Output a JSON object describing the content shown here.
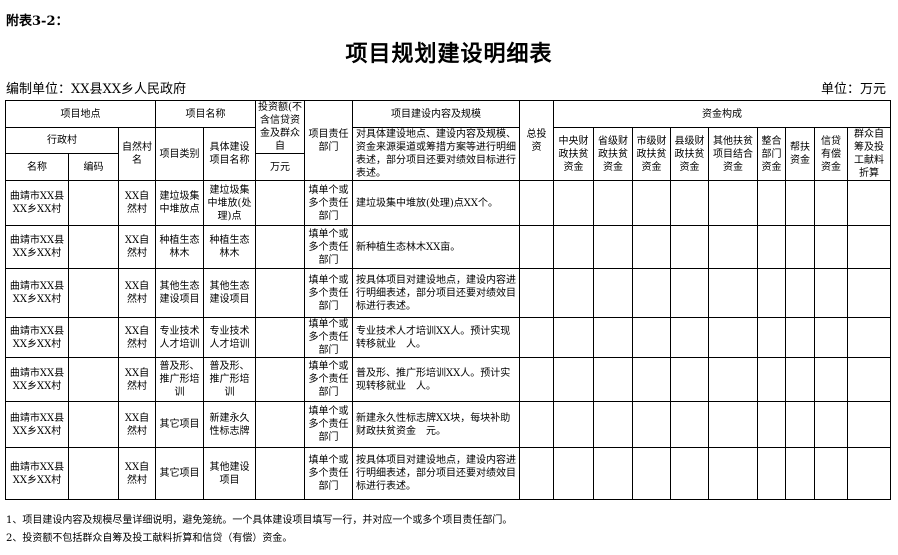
{
  "appendix_label": "附表3-2：",
  "title": "项目规划建设明细表",
  "org": "编制单位：XX县XX乡人民政府",
  "unit": "单位：万元",
  "header": {
    "location": "项目地点",
    "project_name": "项目名称",
    "investment": "投资额(不含信贷资金及群众自",
    "investment_unit": "万元",
    "dept": "项目责任部门",
    "content": "项目建设内容及规模",
    "content_desc": "对具体建设地点、建设内容及规模、资金来源渠道或筹措方案等进行明细表述，部分项目还要对绩效目标进行表述。",
    "total": "总投资",
    "funding": "资金构成",
    "admin_village": "行政村",
    "natural_village": "自然村名",
    "name": "名称",
    "code": "编码",
    "category": "项目类别",
    "specific_name": "具体建设项目名称",
    "funds": [
      "中央财政扶贫资金",
      "省级财政扶贫资金",
      "市级财政扶贫资金",
      "县级财政扶贫资金",
      "其他扶贫项目结合资金",
      "整合部门资金",
      "帮扶资金",
      "信贷有偿资金",
      "群众自筹及投工献料折算"
    ]
  },
  "rows": [
    {
      "name": "曲靖市XX县XX乡XX村",
      "code": "",
      "village": "XX自然村",
      "category": "建垃圾集中堆放点",
      "specific": "建垃圾集中堆放(处理)点",
      "investment": "",
      "dept": "填单个或多个责任部门",
      "content": "建垃圾集中堆放(处理)点XX个。"
    },
    {
      "name": "曲靖市XX县XX乡XX村",
      "code": "",
      "village": "XX自然村",
      "category": "种植生态林木",
      "specific": "种植生态林木",
      "investment": "",
      "dept": "填单个或多个责任部门",
      "content": "新种植生态林木XX亩。"
    },
    {
      "name": "曲靖市XX县XX乡XX村",
      "code": "",
      "village": "XX自然村",
      "category": "其他生态建设项目",
      "specific": "其他生态建设项目",
      "investment": "",
      "dept": "填单个或多个责任部门",
      "content": "按具体项目对建设地点，建设内容进行明细表述，部分项目还要对绩效目标进行表述。"
    },
    {
      "name": "曲靖市XX县XX乡XX村",
      "code": "",
      "village": "XX自然村",
      "category": "专业技术人才培训",
      "specific": "专业技术人才培训",
      "investment": "",
      "dept": "填单个或多个责任部门",
      "content": "专业技术人才培训XX人。预计实现转移就业　人。"
    },
    {
      "name": "曲靖市XX县XX乡XX村",
      "code": "",
      "village": "XX自然村",
      "category": "普及形、推广形培训",
      "specific": "普及形、推广形培训",
      "investment": "",
      "dept": "填单个或多个责任部门",
      "content": "普及形、推广形培训XX人。预计实现转移就业　人。"
    },
    {
      "name": "曲靖市XX县XX乡XX村",
      "code": "",
      "village": "XX自然村",
      "category": "其它项目",
      "specific": "新建永久性标志牌",
      "investment": "",
      "dept": "填单个或多个责任部门",
      "content": "新建永久性标志牌XX块，每块补助财政扶贫资金　元。"
    },
    {
      "name": "曲靖市XX县XX乡XX村",
      "code": "",
      "village": "XX自然村",
      "category": "其它项目",
      "specific": "其他建设项目",
      "investment": "",
      "dept": "填单个或多个责任部门",
      "content": "按具体项目对建设地点，建设内容进行明细表述，部分项目还要对绩效目标进行表述。"
    }
  ],
  "notes": [
    "1、项目建设内容及规模尽量详细说明，避免笼统。一个具体建设项目填写一行，并对应一个或多个项目责任部门。",
    "2、投资额不包括群众自筹及投工献料折算和信贷（有偿）资金。"
  ]
}
